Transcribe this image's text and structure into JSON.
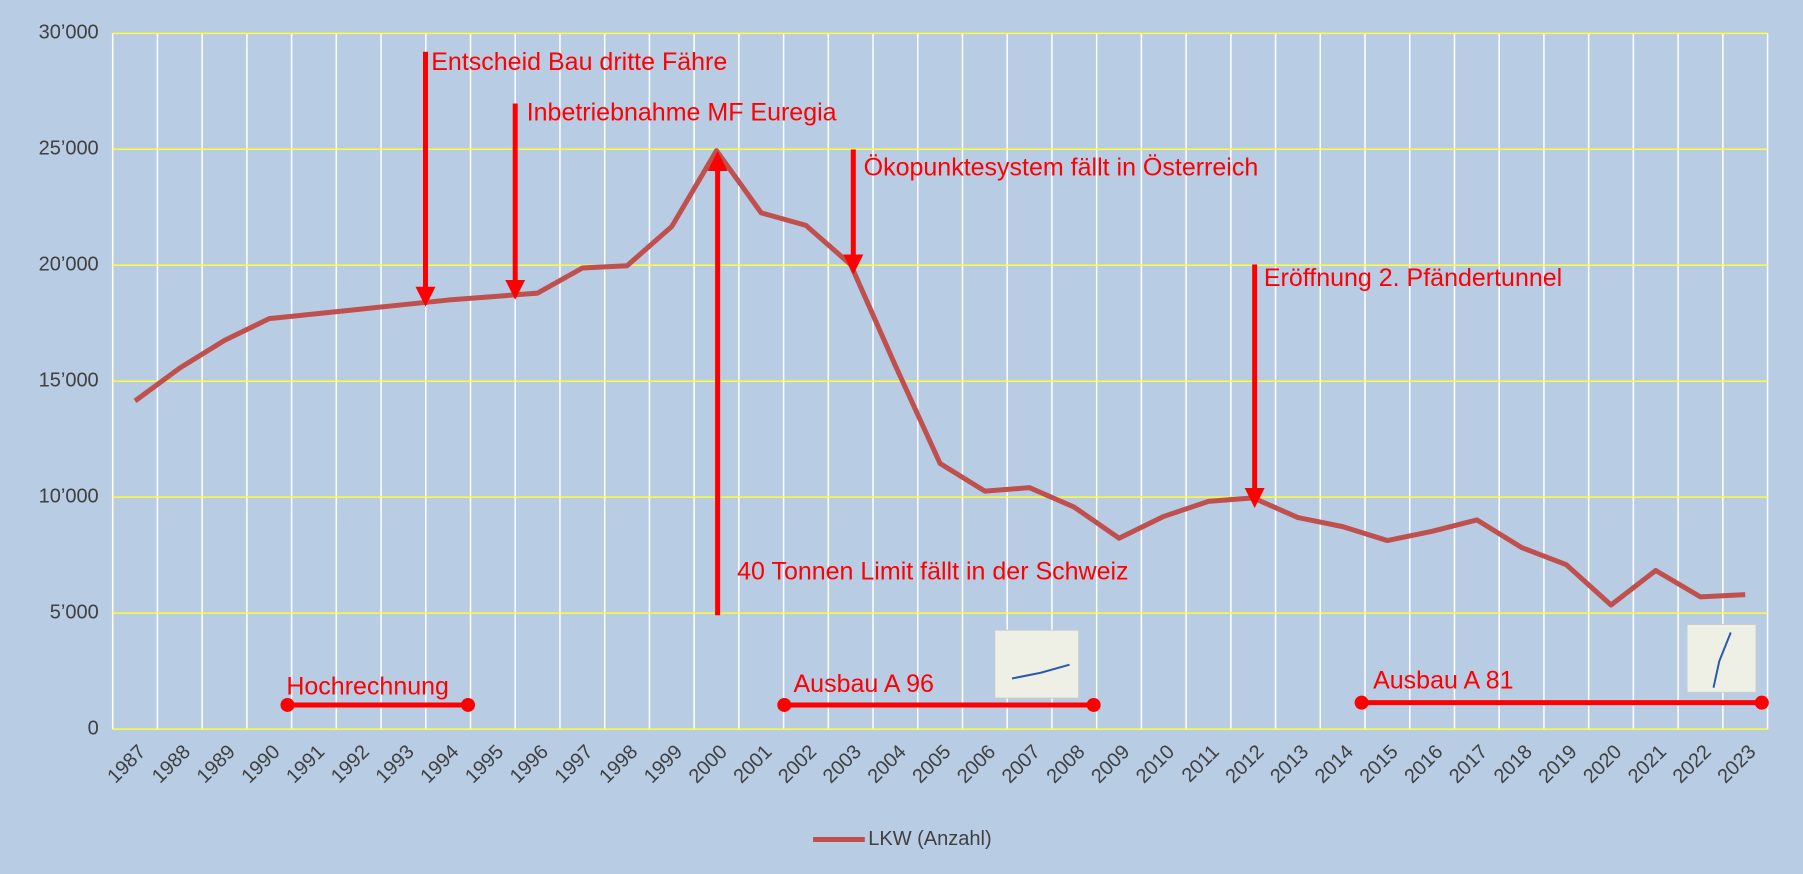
{
  "chart_data": {
    "type": "line",
    "categories": [
      "1987",
      "1988",
      "1989",
      "1990",
      "1991",
      "1992",
      "1993",
      "1994",
      "1995",
      "1996",
      "1997",
      "1998",
      "1999",
      "2000",
      "2001",
      "2002",
      "2003",
      "2004",
      "2005",
      "2006",
      "2007",
      "2008",
      "2009",
      "2010",
      "2011",
      "2012",
      "2013",
      "2014",
      "2015",
      "2016",
      "2017",
      "2018",
      "2019",
      "2020",
      "2021",
      "2022",
      "2023"
    ],
    "series": [
      {
        "name": "LKW (Anzahl)",
        "color": "#c0504d",
        "values": [
          14150,
          15570,
          16760,
          17700,
          17900,
          18100,
          18300,
          18500,
          18650,
          18800,
          19880,
          19980,
          21670,
          24940,
          22260,
          21720,
          20030,
          15670,
          11450,
          10260,
          10410,
          9570,
          8230,
          9170,
          9820,
          9970,
          9120,
          8730,
          8130,
          8530,
          9020,
          7830,
          7090,
          5350,
          6840,
          5700,
          5800
        ]
      }
    ],
    "ylim": [
      0,
      30000
    ],
    "yticks": [
      0,
      {
        "value": 5000,
        "label": "5’000"
      },
      {
        "value": 10000,
        "label": "10’000"
      },
      {
        "value": 15000,
        "label": "15’000"
      },
      {
        "value": 20000,
        "label": "20’000"
      },
      {
        "value": 25000,
        "label": "25’000"
      },
      {
        "value": 30000,
        "label": "30’000"
      }
    ],
    "grid": true,
    "legend": "bottom",
    "annotations": [
      "Entscheid Bau dritte Fähre",
      "Inbetriebnahme MF Euregia",
      "Ökopunktesystem fällt in Österreich",
      "Eröffnung 2. Pfändertunnel",
      "40 Tonnen Limit fällt in der Schweiz",
      "Hochrechnung",
      "Ausbau A 96",
      "Ausbau A 81"
    ]
  }
}
